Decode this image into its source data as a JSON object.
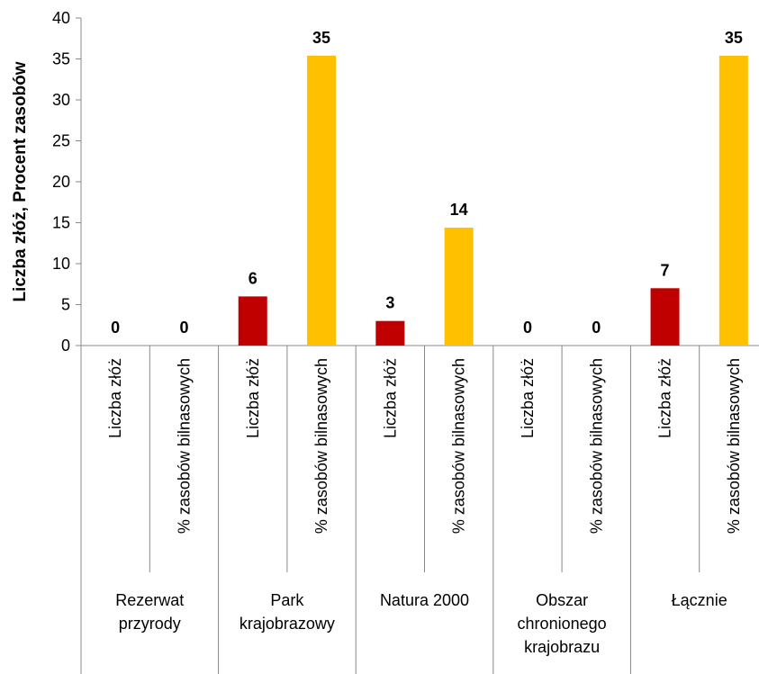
{
  "chart_data": {
    "type": "bar",
    "ylabel": "Liczba złóż, Procent zasobów",
    "categories": [
      "Rezerwat\nprzyrody",
      "Park\nkrajobrazowy",
      "Natura 2000",
      "Obszar\nchronionego\nkrajobrazu",
      "Łącznie"
    ],
    "series": [
      {
        "name": "Liczba złóż",
        "color": "#c00000",
        "values": [
          0,
          6,
          3,
          0,
          7
        ]
      },
      {
        "name": "% zasobów bilnasowych",
        "color": "#ffc000",
        "values": [
          0,
          35.4,
          14.4,
          0,
          35.4
        ],
        "value_labels": [
          "0",
          "35",
          "14",
          "0",
          "35"
        ]
      }
    ],
    "ylim": [
      0,
      40
    ],
    "yticks": [
      0,
      5,
      10,
      15,
      20,
      25,
      30,
      35,
      40
    ]
  }
}
